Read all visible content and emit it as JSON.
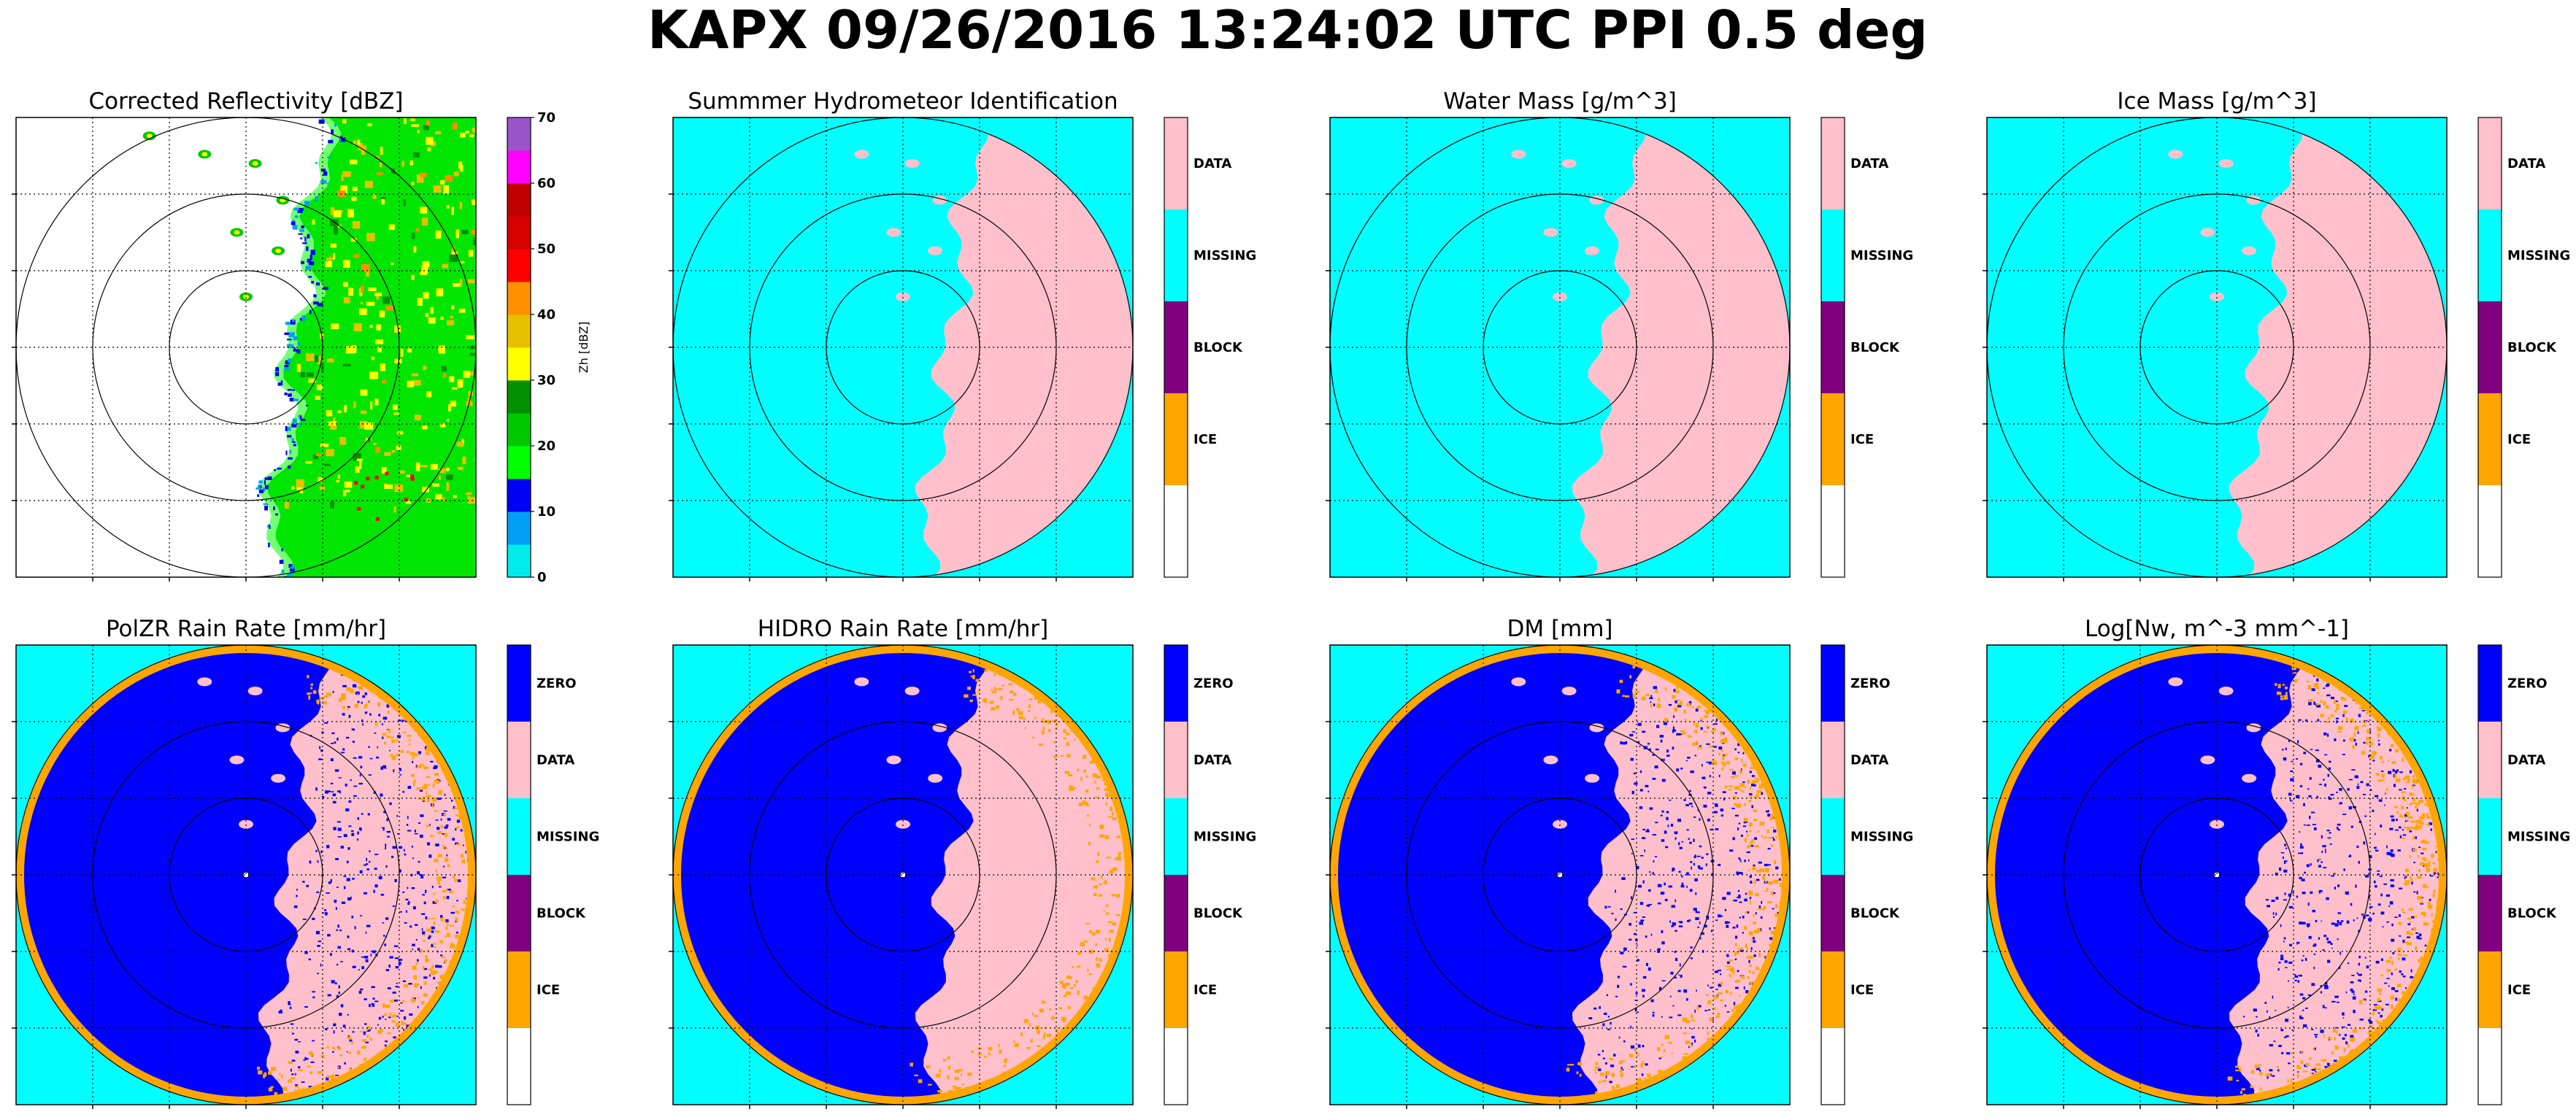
{
  "figure": {
    "suptitle": "KAPX 09/26/2016 13:24:02 UTC PPI 0.5 deg"
  },
  "colors": {
    "missing": "#00ffff",
    "data": "#ffc0cb",
    "zero": "#0000ff",
    "block": "#800080",
    "ice": "#ffa500",
    "none": "#ffffff"
  },
  "chart_data": [
    {
      "type": "heatmap",
      "title": "Corrected Reflectivity [dBZ]",
      "colorbar": {
        "kind": "continuous",
        "label": "Zh [dBZ]",
        "ticks": [
          "0",
          "10",
          "20",
          "30",
          "40",
          "50",
          "60",
          "70"
        ],
        "range": [
          0,
          70
        ],
        "colors": [
          "#00ecec",
          "#01a0f6",
          "#0000f6",
          "#00ff00",
          "#00c800",
          "#009000",
          "#ffff00",
          "#e7c000",
          "#ff9000",
          "#ff0000",
          "#d60000",
          "#c00000",
          "#ff00ff",
          "#9955c9"
        ]
      },
      "field": "reflectivity",
      "echo_edge": "east",
      "range_rings": 3,
      "grid": true
    },
    {
      "type": "heatmap",
      "title": "Summmer Hydrometeor Identification",
      "colorbar": {
        "kind": "categorical",
        "categories": [
          "DATA",
          "MISSING",
          "BLOCK",
          "ICE"
        ]
      },
      "field": "categorical",
      "background": "missing",
      "inside": "missing",
      "echo": "data",
      "echo_edge": "east",
      "range_rings": 3,
      "grid": true
    },
    {
      "type": "heatmap",
      "title": "Water Mass [g/m^3]",
      "colorbar": {
        "kind": "categorical",
        "categories": [
          "DATA",
          "MISSING",
          "BLOCK",
          "ICE"
        ]
      },
      "field": "categorical",
      "background": "missing",
      "inside": "missing",
      "echo": "data",
      "echo_edge": "east",
      "range_rings": 3,
      "grid": true
    },
    {
      "type": "heatmap",
      "title": "Ice Mass [g/m^3]",
      "colorbar": {
        "kind": "categorical",
        "categories": [
          "DATA",
          "MISSING",
          "BLOCK",
          "ICE"
        ]
      },
      "field": "categorical",
      "background": "missing",
      "inside": "missing",
      "echo": "data",
      "echo_edge": "east",
      "range_rings": 3,
      "grid": true
    },
    {
      "type": "heatmap",
      "title": "PolZR Rain Rate [mm/hr]",
      "colorbar": {
        "kind": "categorical",
        "categories": [
          "ZERO",
          "DATA",
          "MISSING",
          "BLOCK",
          "ICE"
        ]
      },
      "field": "categorical",
      "background": "missing",
      "inside": "zero",
      "echo": "data",
      "speckle": "zero",
      "rim": "ice",
      "echo_edge": "east",
      "range_rings": 3,
      "grid": true
    },
    {
      "type": "heatmap",
      "title": "HIDRO Rain Rate [mm/hr]",
      "colorbar": {
        "kind": "categorical",
        "categories": [
          "ZERO",
          "DATA",
          "MISSING",
          "BLOCK",
          "ICE"
        ]
      },
      "field": "categorical",
      "background": "missing",
      "inside": "zero",
      "echo": "data",
      "rim": "ice",
      "echo_edge": "east",
      "range_rings": 3,
      "grid": true
    },
    {
      "type": "heatmap",
      "title": "DM [mm]",
      "colorbar": {
        "kind": "categorical",
        "categories": [
          "ZERO",
          "DATA",
          "MISSING",
          "BLOCK",
          "ICE"
        ]
      },
      "field": "categorical",
      "background": "missing",
      "inside": "zero",
      "echo": "data",
      "speckle": "zero",
      "rim": "ice",
      "echo_edge": "east",
      "range_rings": 3,
      "grid": true
    },
    {
      "type": "heatmap",
      "title": "Log[Nw, m^-3 mm^-1]",
      "colorbar": {
        "kind": "categorical",
        "categories": [
          "ZERO",
          "DATA",
          "MISSING",
          "BLOCK",
          "ICE"
        ]
      },
      "field": "categorical",
      "background": "missing",
      "inside": "zero",
      "echo": "data",
      "speckle": "zero",
      "rim": "ice",
      "echo_edge": "east",
      "range_rings": 3,
      "grid": true
    }
  ]
}
